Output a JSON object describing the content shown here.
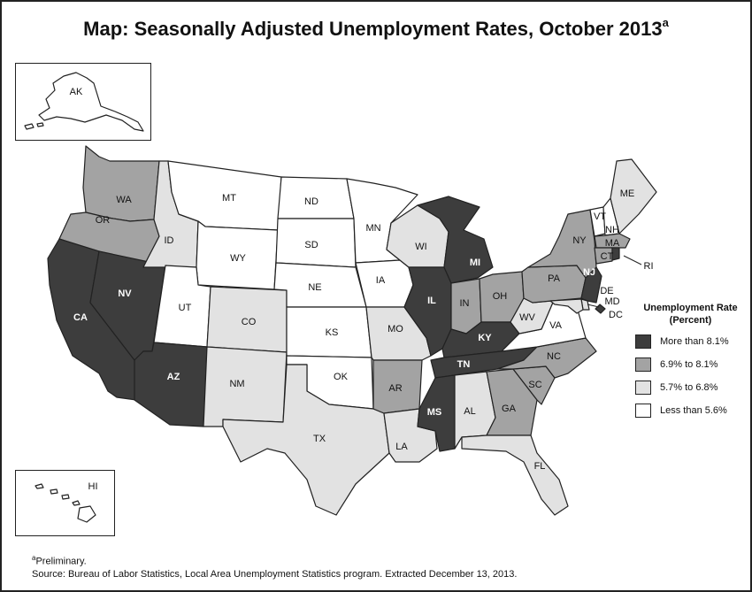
{
  "title": "Map: Seasonally Adjusted Unemployment Rates, October 2013",
  "title_superscript": "a",
  "colors": {
    "more_than_8_1": "#3d3d3d",
    "6_9_to_8_1": "#a3a3a3",
    "5_7_to_6_8": "#e2e2e2",
    "less_than_5_6": "#ffffff"
  },
  "legend": {
    "title_line1": "Unemployment Rate",
    "title_line2": "(Percent)",
    "items": [
      {
        "label": "More than 8.1%",
        "class": "more_than_8_1"
      },
      {
        "label": "6.9% to 8.1%",
        "class": "6_9_to_8_1"
      },
      {
        "label": "5.7% to 6.8%",
        "class": "5_7_to_6_8"
      },
      {
        "label": "Less than 5.6%",
        "class": "less_than_5_6"
      }
    ]
  },
  "states": {
    "AK": "less_than_5_6",
    "HI": "less_than_5_6",
    "WA": "6_9_to_8_1",
    "OR": "6_9_to_8_1",
    "CA": "more_than_8_1",
    "NV": "more_than_8_1",
    "ID": "5_7_to_6_8",
    "MT": "less_than_5_6",
    "WY": "less_than_5_6",
    "UT": "less_than_5_6",
    "AZ": "more_than_8_1",
    "CO": "5_7_to_6_8",
    "NM": "5_7_to_6_8",
    "ND": "less_than_5_6",
    "SD": "less_than_5_6",
    "NE": "less_than_5_6",
    "KS": "less_than_5_6",
    "OK": "less_than_5_6",
    "TX": "5_7_to_6_8",
    "MN": "less_than_5_6",
    "IA": "less_than_5_6",
    "MO": "5_7_to_6_8",
    "AR": "6_9_to_8_1",
    "LA": "5_7_to_6_8",
    "WI": "5_7_to_6_8",
    "IL": "more_than_8_1",
    "MI": "more_than_8_1",
    "IN": "6_9_to_8_1",
    "OH": "6_9_to_8_1",
    "KY": "more_than_8_1",
    "TN": "more_than_8_1",
    "MS": "more_than_8_1",
    "AL": "5_7_to_6_8",
    "GA": "6_9_to_8_1",
    "FL": "5_7_to_6_8",
    "SC": "6_9_to_8_1",
    "NC": "6_9_to_8_1",
    "VA": "less_than_5_6",
    "WV": "5_7_to_6_8",
    "PA": "6_9_to_8_1",
    "NY": "6_9_to_8_1",
    "VT": "less_than_5_6",
    "NH": "less_than_5_6",
    "ME": "5_7_to_6_8",
    "MA": "6_9_to_8_1",
    "RI": "more_than_8_1",
    "CT": "6_9_to_8_1",
    "NJ": "more_than_8_1",
    "DE": "5_7_to_6_8",
    "MD": "5_7_to_6_8",
    "DC": "more_than_8_1"
  },
  "footnote": {
    "sup": "a",
    "line1": "Preliminary.",
    "line2": "Source: Bureau of Labor Statistics, Local Area Unemployment Statistics program. Extracted December 13, 2013."
  }
}
